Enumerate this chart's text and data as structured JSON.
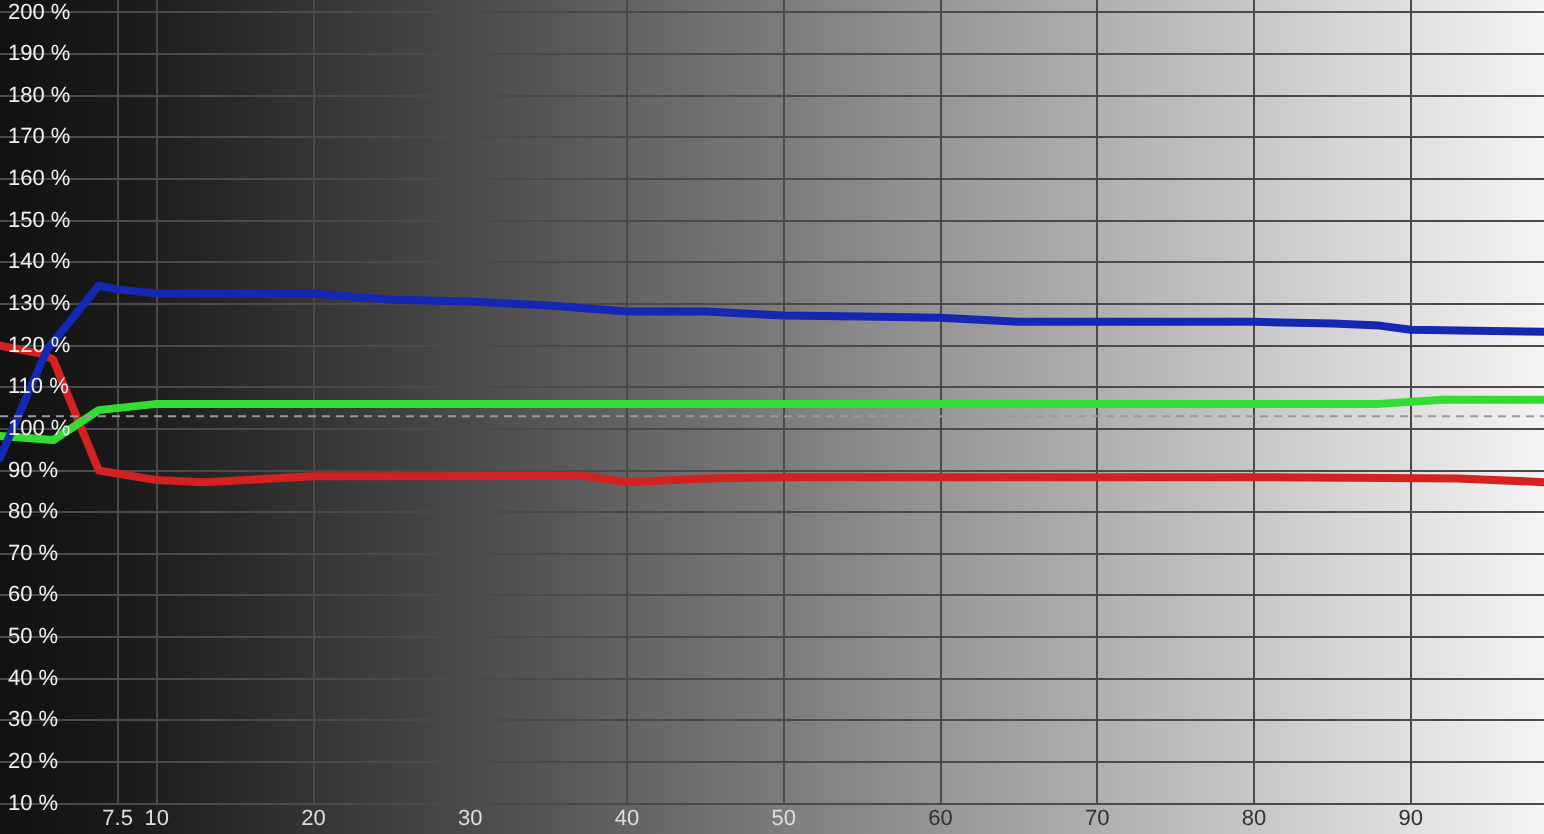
{
  "chart_data": {
    "type": "line",
    "xlim": [
      0,
      98.5
    ],
    "ylim": [
      10,
      203
    ],
    "xticks": [
      7.5,
      10,
      20,
      30,
      40,
      50,
      60,
      70,
      80,
      90
    ],
    "yticks": [
      {
        "value": 10,
        "label": "10 %"
      },
      {
        "value": 20,
        "label": "20 %"
      },
      {
        "value": 30,
        "label": "30 %"
      },
      {
        "value": 40,
        "label": "40 %"
      },
      {
        "value": 50,
        "label": "50 %"
      },
      {
        "value": 60,
        "label": "60 %"
      },
      {
        "value": 70,
        "label": "70 %"
      },
      {
        "value": 80,
        "label": "80 %"
      },
      {
        "value": 90,
        "label": "90 %"
      },
      {
        "value": 100,
        "label": "100 %"
      },
      {
        "value": 110,
        "label": "110 %"
      },
      {
        "value": 120,
        "label": "120 %"
      },
      {
        "value": 130,
        "label": "130 %"
      },
      {
        "value": 140,
        "label": "140 %"
      },
      {
        "value": 150,
        "label": "150 %"
      },
      {
        "value": 160,
        "label": "160 %"
      },
      {
        "value": 170,
        "label": "170 %"
      },
      {
        "value": 180,
        "label": "180 %"
      },
      {
        "value": 190,
        "label": "190 %"
      },
      {
        "value": 200,
        "label": "200 %"
      }
    ],
    "grid": true,
    "legend": false,
    "marker": "none",
    "line_style": "solid",
    "series": [
      {
        "color": "#1428b4",
        "x": [
          0,
          3,
          6.3,
          7.5,
          10,
          20,
          25,
          30,
          35,
          40,
          45,
          50,
          55,
          60,
          65,
          70,
          80,
          85,
          88,
          90,
          98.5
        ],
        "values": [
          93,
          119,
          134.4,
          133.5,
          132.5,
          132.5,
          131,
          130.6,
          129.6,
          128.2,
          128.2,
          127.2,
          127,
          126.7,
          125.7,
          125.7,
          125.7,
          125.3,
          124.8,
          123.8,
          123.3
        ]
      },
      {
        "color": "#32dc32",
        "x": [
          0,
          3.4,
          6.3,
          10,
          20,
          40,
          60,
          80,
          88,
          92,
          98.5
        ],
        "values": [
          98.3,
          97.3,
          104.5,
          106,
          106,
          106,
          106,
          106,
          106,
          107,
          107
        ]
      },
      {
        "color": "#d22222",
        "x": [
          0,
          2.7,
          3.4,
          6.3,
          10,
          13,
          20,
          30,
          37,
          40,
          45,
          50,
          60,
          70,
          80,
          93,
          98.5
        ],
        "values": [
          120,
          118,
          116.6,
          90,
          87.7,
          87.2,
          88.6,
          88.6,
          88.8,
          87.2,
          88.1,
          88.4,
          88.4,
          88.4,
          88.4,
          88.1,
          87.2
        ]
      }
    ],
    "ref_lines": [
      {
        "axis": "y",
        "value": 103,
        "color": "#9a9a9a",
        "line_style": "dashed"
      }
    ]
  }
}
